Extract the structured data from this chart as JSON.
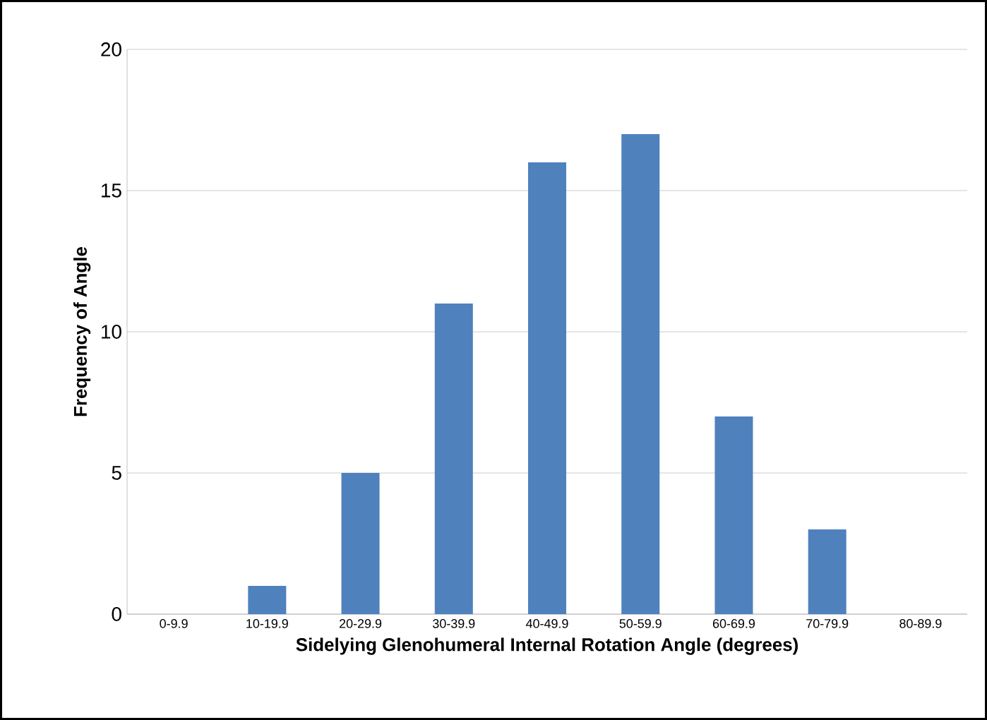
{
  "chart_data": {
    "type": "bar",
    "xlabel": "Sidelying Glenohumeral Internal Rotation Angle (degrees)",
    "ylabel": "Frequency of Angle",
    "categories": [
      "0-9.9",
      "10-19.9",
      "20-29.9",
      "30-39.9",
      "40-49.9",
      "50-59.9",
      "60-69.9",
      "70-79.9",
      "80-89.9"
    ],
    "values": [
      0,
      1,
      5,
      11,
      16,
      17,
      7,
      3,
      0
    ],
    "color": "#4f81bd",
    "ylim": [
      0,
      20
    ],
    "yticks": [
      0,
      5,
      10,
      15,
      20
    ],
    "grid": "y"
  }
}
